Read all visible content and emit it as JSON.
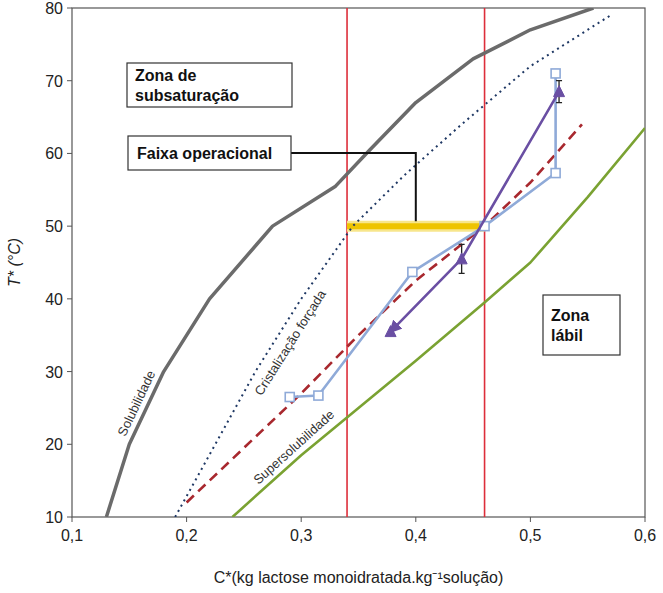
{
  "chart_data": {
    "type": "line",
    "x_label": "C*(kg lactose monoidratada.kg⁻¹solução)",
    "y_label": "T* (°C)",
    "xlim": [
      0.1,
      0.6
    ],
    "ylim": [
      10,
      80
    ],
    "xticks": [
      {
        "value": 0.1,
        "label": "0,1"
      },
      {
        "value": 0.2,
        "label": "0,2"
      },
      {
        "value": 0.3,
        "label": "0,3"
      },
      {
        "value": 0.4,
        "label": "0,4"
      },
      {
        "value": 0.5,
        "label": "0,5"
      },
      {
        "value": 0.6,
        "label": "0,6"
      }
    ],
    "yticks": [
      10,
      20,
      30,
      40,
      50,
      60,
      70,
      80
    ],
    "grid": false,
    "series": [
      {
        "name": "Solubilidade",
        "color": "#6b6b6b",
        "line_style": "solid",
        "x": [
          0.13,
          0.15,
          0.18,
          0.22,
          0.275,
          0.33,
          0.36,
          0.4,
          0.45,
          0.5,
          0.555
        ],
        "values": [
          10,
          20,
          30,
          40,
          50,
          55.5,
          60.5,
          67,
          73,
          77,
          80
        ]
      },
      {
        "name": "Cristalização forçada",
        "color": "#1f3864",
        "line_style": "dotted",
        "x": [
          0.19,
          0.225,
          0.26,
          0.3,
          0.345,
          0.39,
          0.44,
          0.5,
          0.57
        ],
        "values": [
          10,
          20,
          30,
          40,
          50,
          57,
          64,
          72,
          79
        ]
      },
      {
        "color": "#a8282e",
        "line_style": "dashed",
        "x": [
          0.2,
          0.25,
          0.3,
          0.35,
          0.4,
          0.46,
          0.5,
          0.545
        ],
        "values": [
          12,
          19.5,
          27,
          35,
          42.5,
          50,
          56,
          64
        ]
      },
      {
        "name": "Supersolubilidade",
        "color": "#7aa232",
        "line_style": "solid",
        "x": [
          0.24,
          0.3,
          0.35,
          0.4,
          0.46,
          0.5,
          0.55,
          0.6
        ],
        "values": [
          10,
          18.5,
          25,
          31.5,
          39.5,
          45,
          54,
          63.5
        ]
      },
      {
        "color": "#8faad8",
        "line_style": "solid",
        "marker": "square",
        "x": [
          0.29,
          0.315,
          0.397,
          0.46,
          0.522,
          0.522
        ],
        "values": [
          26.5,
          26.7,
          43.7,
          50,
          57.3,
          71
        ]
      },
      {
        "color": "#6a4fa3",
        "line_style": "arrow",
        "marker": "triangle",
        "x": [
          0.525,
          0.44,
          0.378
        ],
        "values": [
          68.5,
          45.5,
          35.5
        ],
        "errors": [
          1.5,
          2,
          null
        ]
      }
    ],
    "vlines": [
      0.34,
      0.46
    ],
    "operating_range": {
      "label": "Faixa operacional",
      "x": [
        0.34,
        0.46
      ],
      "y": 50
    },
    "annotations": [
      {
        "text": [
          "Zona de",
          "subsaturação"
        ]
      },
      {
        "text": [
          "Zona",
          "lábil"
        ]
      }
    ]
  }
}
